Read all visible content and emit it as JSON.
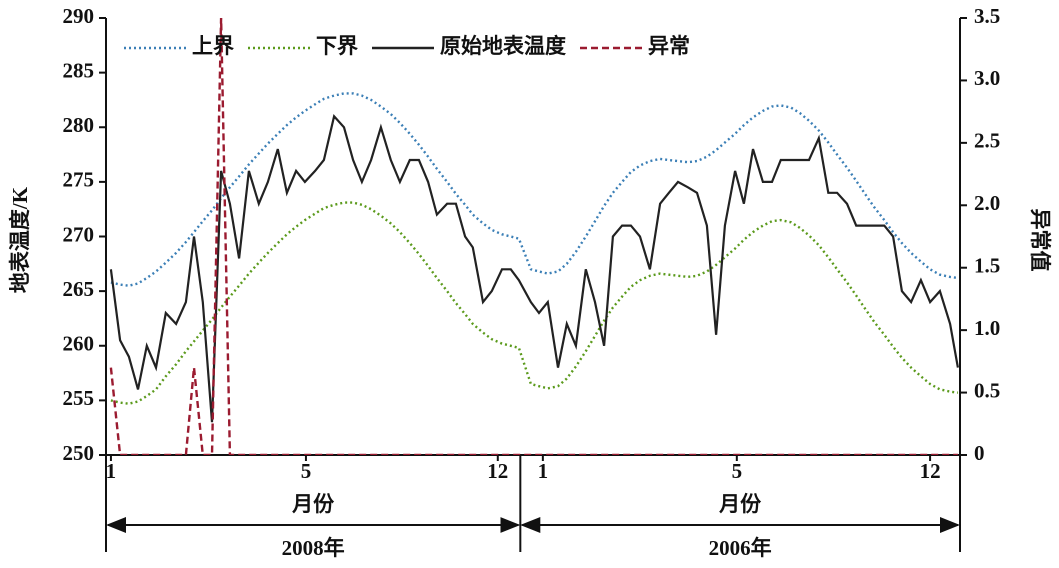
{
  "chart_data": {
    "type": "line",
    "ylabel": "地表温度/K",
    "y2label": "异常值",
    "xlabel": "月份",
    "period_labels": [
      "2008年",
      "2006年"
    ],
    "xlim": [
      0.86,
      25.12
    ],
    "ylim": [
      250,
      290
    ],
    "y2lim": [
      0,
      3.5
    ],
    "xticks": [
      1,
      {
        "value": 6.54,
        "label": "5"
      },
      {
        "value": 11.99,
        "label": "12"
      },
      {
        "value": 13.27,
        "label": "1"
      },
      {
        "value": 18.78,
        "label": "5"
      },
      {
        "value": 24.27,
        "label": "12"
      }
    ],
    "yticks": [
      250,
      255,
      260,
      265,
      270,
      275,
      280,
      285,
      290
    ],
    "y2ticks": [
      0,
      0.5,
      {
        "value": 1,
        "label": "1.0"
      },
      1.5,
      {
        "value": 2,
        "label": "2.0"
      },
      2.5,
      {
        "value": 3,
        "label": "3.0"
      },
      3.5
    ],
    "legend": "top-left",
    "x": [
      1.0,
      1.26,
      1.51,
      1.77,
      2.02,
      2.28,
      2.56,
      2.85,
      3.13,
      3.36,
      3.61,
      3.87,
      4.13,
      4.38,
      4.64,
      4.92,
      5.2,
      5.46,
      5.74,
      6.0,
      6.26,
      6.51,
      6.8,
      7.05,
      7.34,
      7.62,
      7.88,
      8.13,
      8.39,
      8.67,
      8.95,
      9.21,
      9.49,
      9.75,
      10.01,
      10.26,
      10.55,
      10.8,
      11.06,
      11.28,
      11.57,
      11.82,
      12.11,
      12.36,
      12.59,
      12.93,
      13.16,
      13.41,
      13.7,
      13.95,
      14.21,
      14.49,
      14.75,
      15.01,
      15.26,
      15.52,
      15.77,
      16.03,
      16.31,
      16.6,
      16.85,
      17.11,
      17.39,
      17.65,
      17.93,
      18.19,
      18.44,
      18.73,
      18.98,
      19.24,
      19.52,
      19.78,
      20.03,
      20.32,
      20.57,
      20.83,
      21.11,
      21.38,
      21.63,
      21.91,
      22.17,
      22.42,
      22.68,
      22.97,
      23.22,
      23.47,
      23.73,
      24.01,
      24.27,
      24.55,
      24.84,
      25.06
    ],
    "series": [
      {
        "name": "上界",
        "color": "#3b7fb6",
        "style": "dotted",
        "values": [
          265.8,
          265.6,
          265.5,
          265.7,
          266.2,
          266.8,
          267.6,
          268.5,
          269.5,
          270.4,
          271.4,
          272.4,
          273.5,
          274.5,
          275.5,
          276.6,
          277.6,
          278.5,
          279.4,
          280.2,
          280.9,
          281.5,
          282.1,
          282.6,
          282.9,
          283.1,
          283.1,
          282.9,
          282.5,
          281.9,
          281.2,
          280.4,
          279.4,
          278.4,
          277.3,
          276.2,
          275.0,
          273.9,
          272.9,
          272.0,
          271.2,
          270.6,
          270.2,
          270.0,
          269.8,
          267.0,
          266.8,
          266.6,
          266.8,
          267.5,
          268.6,
          270.0,
          271.4,
          272.8,
          274.0,
          275.0,
          275.9,
          276.5,
          276.9,
          277.1,
          277.0,
          276.9,
          276.8,
          276.9,
          277.3,
          277.9,
          278.6,
          279.4,
          280.2,
          280.9,
          281.5,
          281.9,
          282.0,
          281.8,
          281.3,
          280.6,
          279.7,
          278.6,
          277.5,
          276.3,
          275.1,
          273.9,
          272.7,
          271.5,
          270.4,
          269.4,
          268.5,
          267.7,
          267.0,
          266.5,
          266.3,
          266.2
        ]
      },
      {
        "name": "下界",
        "color": "#5b9a1c",
        "style": "dotted",
        "values": [
          255.0,
          254.8,
          254.7,
          254.9,
          255.4,
          256.0,
          257.2,
          258.3,
          259.5,
          260.4,
          261.4,
          262.4,
          263.5,
          264.5,
          265.5,
          266.6,
          267.6,
          268.5,
          269.4,
          270.2,
          270.9,
          271.5,
          272.1,
          272.6,
          272.9,
          273.1,
          273.1,
          272.9,
          272.5,
          271.9,
          271.2,
          270.4,
          269.4,
          268.4,
          267.3,
          266.2,
          265.0,
          263.9,
          262.9,
          262.0,
          261.2,
          260.6,
          260.2,
          260.0,
          259.8,
          256.5,
          256.3,
          256.1,
          256.3,
          257.0,
          258.1,
          259.5,
          260.9,
          262.3,
          263.5,
          264.5,
          265.4,
          266.0,
          266.4,
          266.6,
          266.5,
          266.4,
          266.3,
          266.4,
          266.8,
          267.4,
          268.1,
          268.9,
          269.7,
          270.4,
          271.0,
          271.4,
          271.5,
          271.3,
          270.8,
          270.1,
          269.2,
          268.1,
          267.0,
          265.8,
          264.6,
          263.4,
          262.2,
          261.0,
          259.9,
          258.9,
          258.0,
          257.2,
          256.5,
          256.0,
          255.8,
          255.7
        ]
      },
      {
        "name": "原始地表温度",
        "color": "#222222",
        "style": "solid",
        "values": [
          267,
          260.5,
          259,
          256,
          260,
          258,
          263,
          262,
          264,
          270,
          264,
          253,
          276,
          273,
          268,
          276,
          273,
          275,
          278,
          274,
          276,
          275,
          276,
          277,
          281,
          280,
          277,
          275,
          277,
          280,
          277,
          275,
          277,
          277,
          275,
          272,
          273,
          273,
          270,
          269,
          264,
          265,
          267,
          267,
          266,
          264,
          263,
          264,
          258,
          262,
          260,
          267,
          264,
          260,
          270,
          271,
          271,
          270,
          267,
          273,
          274,
          275,
          274.5,
          274,
          271,
          261,
          271,
          276,
          273,
          278,
          275,
          275,
          277,
          277,
          277,
          277,
          279,
          274,
          274,
          273,
          271,
          271,
          271,
          271,
          270,
          265,
          264,
          266,
          264,
          265,
          262,
          258
        ]
      },
      {
        "name": "异常",
        "color": "#9b1b30",
        "style": "dashed",
        "axis": "y2",
        "values": [
          0.7,
          0,
          0,
          0,
          0,
          0,
          0,
          0,
          0,
          0.7,
          0,
          0,
          3.5,
          0,
          0,
          0,
          0,
          0,
          0,
          0,
          0,
          0,
          0,
          0,
          0,
          0,
          0,
          0,
          0,
          0,
          0,
          0,
          0,
          0,
          0,
          0,
          0,
          0,
          0,
          0,
          0,
          0,
          0,
          0,
          0,
          0,
          0,
          0,
          0,
          0,
          0,
          0,
          0,
          0,
          0,
          0,
          0,
          0,
          0,
          0,
          0,
          0,
          0,
          0,
          0,
          0,
          0,
          0,
          0,
          0,
          0,
          0,
          0,
          0,
          0,
          0,
          0,
          0,
          0,
          0,
          0,
          0,
          0,
          0,
          0,
          0,
          0,
          0,
          0,
          0,
          0,
          0
        ]
      }
    ]
  }
}
